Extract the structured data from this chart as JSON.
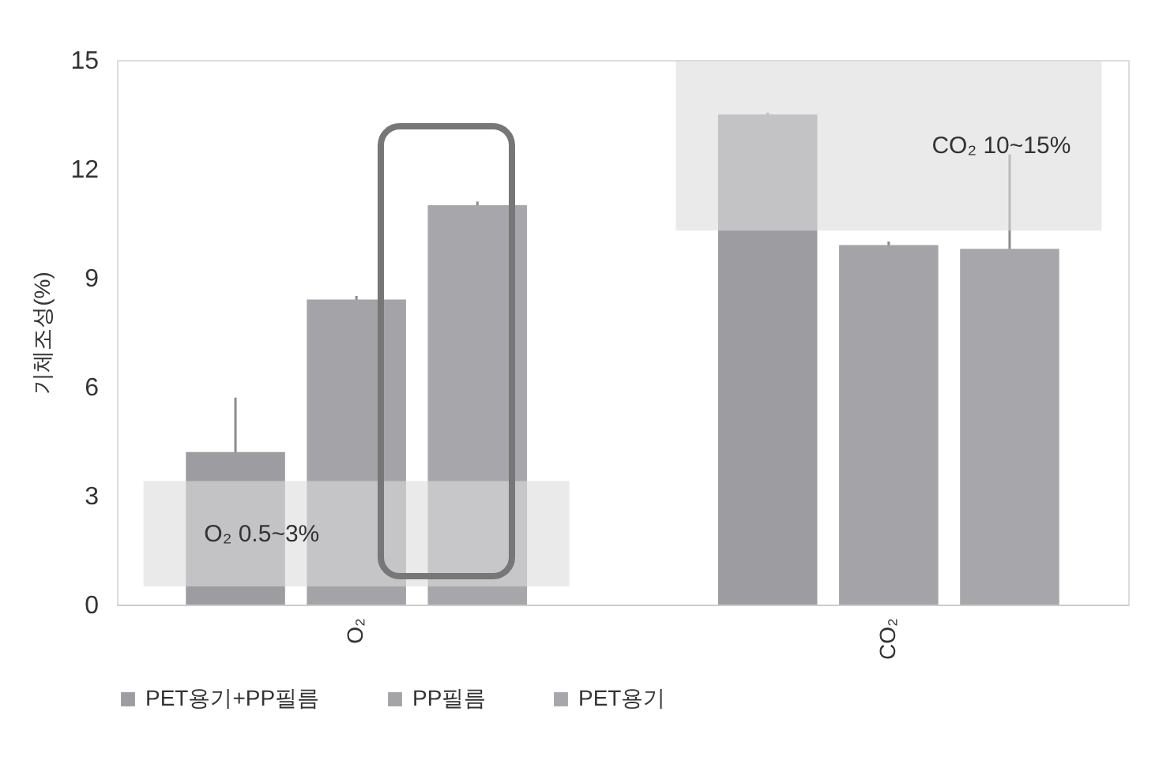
{
  "chart_data": {
    "type": "bar",
    "ylabel": "기체조성(%)",
    "categories": [
      "O₂",
      "CO₂"
    ],
    "series": [
      {
        "name": "PET용기+PP필름",
        "color": "#9d9da1",
        "values": [
          4.2,
          13.5
        ],
        "errors": [
          1.5,
          0.05
        ]
      },
      {
        "name": "PP필름",
        "color": "#a4a4a8",
        "values": [
          8.4,
          9.9
        ],
        "errors": [
          0.1,
          0.1
        ]
      },
      {
        "name": "PET용기",
        "color": "#a7a7ab",
        "values": [
          11.0,
          9.8
        ],
        "errors": [
          0.1,
          2.6
        ]
      }
    ],
    "ylim": [
      0,
      15
    ],
    "yticks": [
      0,
      3,
      6,
      9,
      12,
      15
    ],
    "grid": false,
    "legend": "bottom",
    "bands": [
      {
        "axis": "y",
        "from": 0.5,
        "to": 3.4,
        "label": "O₂ 0.5~3%",
        "color": "#dcdcde"
      },
      {
        "axis": "y",
        "from": 10.3,
        "to": 15,
        "label": "CO₂ 10~15%",
        "color": "#dcdcde"
      }
    ]
  }
}
